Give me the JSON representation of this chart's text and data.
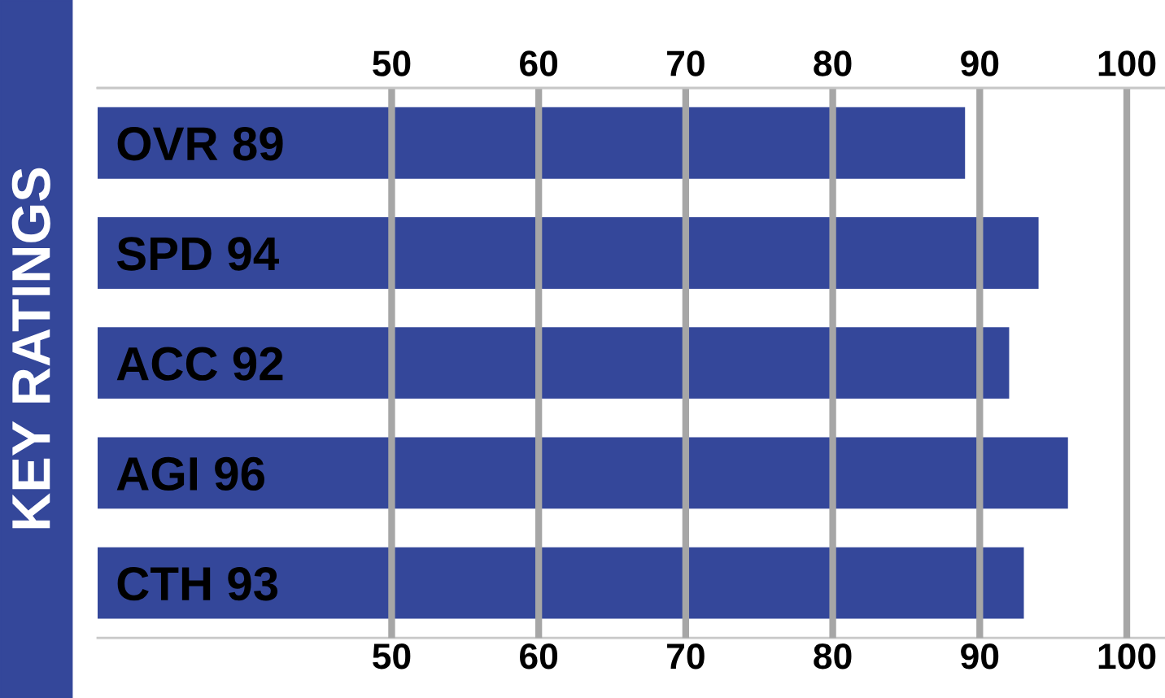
{
  "chart_data": {
    "type": "bar",
    "orientation": "horizontal",
    "title": "KEY RATINGS",
    "categories": [
      "OVR 89",
      "SPD 94",
      "ACC 92",
      "AGI 96",
      "CTH 93"
    ],
    "values": [
      89,
      94,
      92,
      96,
      93
    ],
    "color": "#34479a",
    "xlim": [
      30,
      102.6
    ],
    "xticks": [
      50,
      60,
      70,
      80,
      90,
      100
    ],
    "x2lim": [
      30,
      102.6
    ],
    "x2ticks": [
      50,
      60,
      70,
      80,
      90,
      100
    ],
    "grid": "x"
  }
}
